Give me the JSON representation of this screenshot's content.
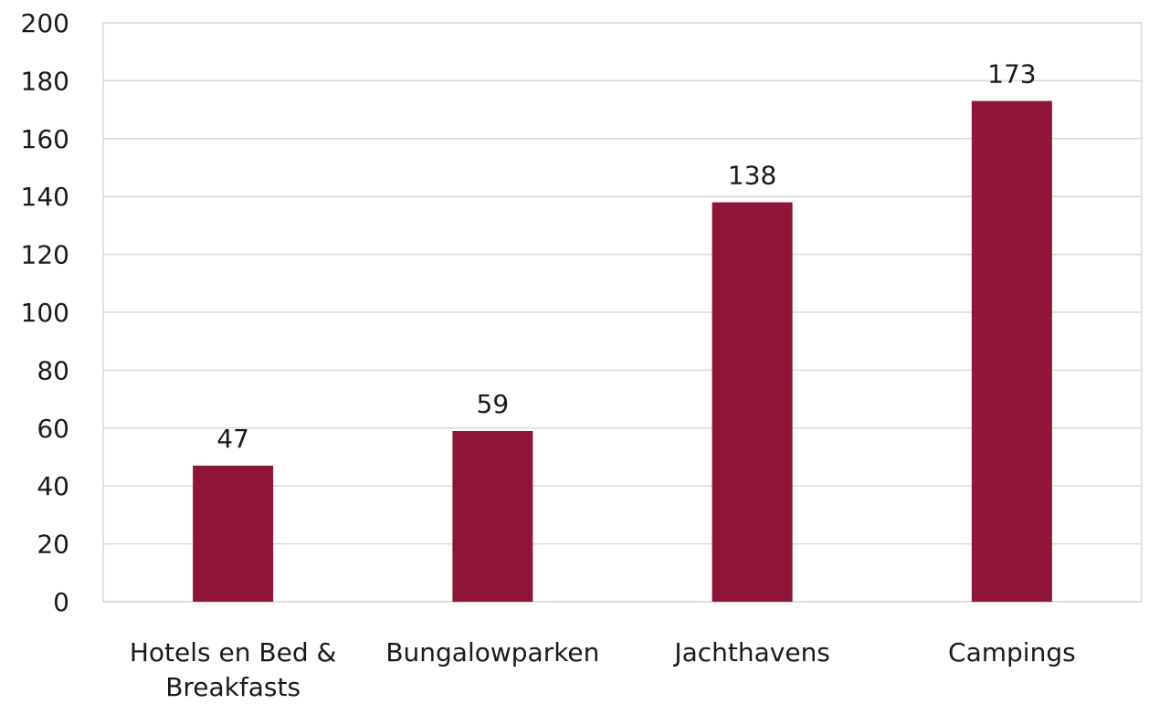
{
  "chart_data": {
    "type": "bar",
    "title": "",
    "xlabel": "",
    "ylabel": "",
    "categories": [
      [
        "Hotels en Bed &",
        "Breakfasts"
      ],
      [
        "Bungalowparken"
      ],
      [
        "Jachthavens"
      ],
      [
        "Campings"
      ]
    ],
    "values": [
      47,
      59,
      138,
      173
    ],
    "data_labels": [
      "47",
      "59",
      "138",
      "173"
    ],
    "ylim": [
      0,
      200
    ],
    "yticks": [
      0,
      20,
      40,
      60,
      80,
      100,
      120,
      140,
      160,
      180,
      200
    ],
    "grid": true,
    "legend": "none",
    "bar_color": "#8e1538",
    "grid_color": "#d9d9d9"
  }
}
